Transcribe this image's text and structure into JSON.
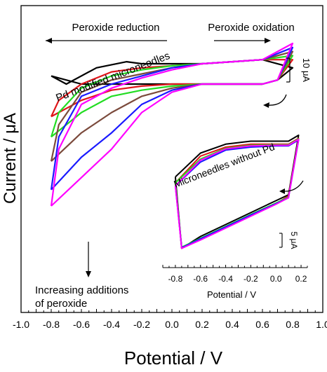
{
  "chart_data": [
    {
      "type": "line",
      "xlabel": "Potential / V",
      "ylabel": "Current / μA",
      "xlim": [
        -1.0,
        1.0
      ],
      "x_ticks": [
        "-1.0",
        "-0.8",
        "-0.6",
        "-0.4",
        "-0.2",
        "0.0",
        "0.2",
        "0.4",
        "0.6",
        "0.8",
        "1.0"
      ],
      "y_scale_bar": "10 μA",
      "grid": false,
      "annotations": {
        "reduction": "Peroxide reduction",
        "oxidation": "Peroxide oxidation",
        "pd_label": "Pd modified microneedles",
        "increasing_line1": "Increasing additions",
        "increasing_line2": "of peroxide"
      },
      "series": [
        {
          "color": "#000000",
          "forward": [
            [
              -0.8,
              -10
            ],
            [
              -0.6,
              -12
            ],
            [
              -0.4,
              -12
            ],
            [
              -0.2,
              -12
            ],
            [
              0.0,
              -12
            ],
            [
              0.2,
              -12
            ],
            [
              0.4,
              -12
            ],
            [
              0.6,
              -12
            ],
            [
              0.7,
              -11
            ],
            [
              0.8,
              -8
            ]
          ],
          "reverse": [
            [
              0.8,
              -8
            ],
            [
              0.6,
              -6
            ],
            [
              0.4,
              -6.5
            ],
            [
              0.2,
              -7
            ],
            [
              0.0,
              -7
            ],
            [
              -0.2,
              -7
            ],
            [
              -0.3,
              -6.5
            ],
            [
              -0.5,
              -8
            ],
            [
              -0.7,
              -12
            ],
            [
              -0.8,
              -10
            ]
          ]
        },
        {
          "color": "#e0161a",
          "forward": [
            [
              -0.8,
              -20
            ],
            [
              -0.6,
              -16
            ],
            [
              -0.4,
              -13.5
            ],
            [
              -0.2,
              -12.5
            ],
            [
              0.0,
              -12
            ],
            [
              0.2,
              -12
            ],
            [
              0.4,
              -12
            ],
            [
              0.6,
              -12
            ],
            [
              0.7,
              -11
            ],
            [
              0.8,
              -6
            ]
          ],
          "reverse": [
            [
              0.8,
              -6
            ],
            [
              0.6,
              -6
            ],
            [
              0.4,
              -6.5
            ],
            [
              0.2,
              -7
            ],
            [
              0.0,
              -7.5
            ],
            [
              -0.2,
              -8
            ],
            [
              -0.4,
              -9
            ],
            [
              -0.6,
              -12
            ],
            [
              -0.75,
              -16
            ],
            [
              -0.8,
              -20
            ]
          ]
        },
        {
          "color": "#22dd22",
          "forward": [
            [
              -0.8,
              -25
            ],
            [
              -0.6,
              -19
            ],
            [
              -0.4,
              -15
            ],
            [
              -0.2,
              -13.5
            ],
            [
              0.0,
              -12.5
            ],
            [
              0.2,
              -12
            ],
            [
              0.4,
              -12
            ],
            [
              0.6,
              -12
            ],
            [
              0.7,
              -11
            ],
            [
              0.8,
              -5
            ]
          ],
          "reverse": [
            [
              0.8,
              -5
            ],
            [
              0.6,
              -6
            ],
            [
              0.4,
              -6.5
            ],
            [
              0.2,
              -7
            ],
            [
              0.0,
              -7.5
            ],
            [
              -0.2,
              -8.5
            ],
            [
              -0.4,
              -10
            ],
            [
              -0.6,
              -13
            ],
            [
              -0.75,
              -19
            ],
            [
              -0.8,
              -25
            ]
          ]
        },
        {
          "color": "#7b4a3c",
          "forward": [
            [
              -0.8,
              -31
            ],
            [
              -0.6,
              -24
            ],
            [
              -0.4,
              -19
            ],
            [
              -0.2,
              -15
            ],
            [
              0.0,
              -13
            ],
            [
              0.2,
              -12
            ],
            [
              0.4,
              -12
            ],
            [
              0.6,
              -12
            ],
            [
              0.7,
              -11
            ],
            [
              0.8,
              -4
            ]
          ],
          "reverse": [
            [
              0.8,
              -4
            ],
            [
              0.6,
              -6
            ],
            [
              0.4,
              -6.5
            ],
            [
              0.2,
              -7
            ],
            [
              0.0,
              -8
            ],
            [
              -0.2,
              -9.5
            ],
            [
              -0.4,
              -11
            ],
            [
              -0.6,
              -14
            ],
            [
              -0.75,
              -22
            ],
            [
              -0.8,
              -31
            ]
          ]
        },
        {
          "color": "#1a1aff",
          "forward": [
            [
              -0.8,
              -38
            ],
            [
              -0.6,
              -30
            ],
            [
              -0.4,
              -24
            ],
            [
              -0.2,
              -17
            ],
            [
              0.0,
              -13.5
            ],
            [
              0.2,
              -12
            ],
            [
              0.4,
              -12
            ],
            [
              0.6,
              -12
            ],
            [
              0.7,
              -11
            ],
            [
              0.8,
              -3
            ]
          ],
          "reverse": [
            [
              0.8,
              -3
            ],
            [
              0.6,
              -6
            ],
            [
              0.4,
              -6.5
            ],
            [
              0.2,
              -7
            ],
            [
              0.0,
              -8
            ],
            [
              -0.2,
              -10
            ],
            [
              -0.4,
              -12
            ],
            [
              -0.6,
              -15
            ],
            [
              -0.75,
              -25
            ],
            [
              -0.8,
              -38
            ]
          ]
        },
        {
          "color": "#ff00ff",
          "forward": [
            [
              -0.8,
              -42
            ],
            [
              -0.6,
              -35
            ],
            [
              -0.4,
              -28
            ],
            [
              -0.2,
              -19
            ],
            [
              0.0,
              -14
            ],
            [
              0.2,
              -12
            ],
            [
              0.4,
              -12
            ],
            [
              0.6,
              -12
            ],
            [
              0.7,
              -11
            ],
            [
              0.8,
              -2
            ]
          ],
          "reverse": [
            [
              0.8,
              -2
            ],
            [
              0.6,
              -6
            ],
            [
              0.4,
              -6.5
            ],
            [
              0.2,
              -7
            ],
            [
              0.0,
              -8.5
            ],
            [
              -0.2,
              -10.5
            ],
            [
              -0.4,
              -13
            ],
            [
              -0.6,
              -17
            ],
            [
              -0.75,
              -28
            ],
            [
              -0.8,
              -42
            ]
          ]
        }
      ]
    },
    {
      "type": "line",
      "title": "Microneedles without Pd",
      "xlabel": "Potential / V",
      "xlim": [
        -0.9,
        0.25
      ],
      "x_ticks": [
        "-0.8",
        "-0.6",
        "-0.4",
        "-0.2",
        "0.0",
        "0.2"
      ],
      "y_scale_bar": "5 μA",
      "grid": false,
      "series": [
        {
          "color": "#000000",
          "forward": [
            [
              -0.8,
              5
            ],
            [
              -0.6,
              9
            ],
            [
              -0.4,
              10.5
            ],
            [
              -0.2,
              11
            ],
            [
              0.0,
              11
            ],
            [
              0.1,
              11
            ],
            [
              0.18,
              12
            ]
          ],
          "reverse": [
            [
              0.18,
              12
            ],
            [
              0.1,
              2
            ],
            [
              0.0,
              1
            ],
            [
              -0.2,
              -1
            ],
            [
              -0.4,
              -3
            ],
            [
              -0.6,
              -5
            ],
            [
              -0.75,
              -7
            ],
            [
              -0.8,
              5
            ]
          ]
        },
        {
          "color": "#e0161a",
          "forward": [
            [
              -0.8,
              4
            ],
            [
              -0.6,
              8.5
            ],
            [
              -0.4,
              10
            ],
            [
              -0.2,
              10.5
            ],
            [
              0.0,
              10.5
            ],
            [
              0.1,
              10.5
            ],
            [
              0.18,
              11.5
            ]
          ],
          "reverse": [
            [
              0.18,
              11.5
            ],
            [
              0.1,
              1.8
            ],
            [
              0.0,
              0.5
            ],
            [
              -0.2,
              -1.5
            ],
            [
              -0.4,
              -3.5
            ],
            [
              -0.6,
              -5.5
            ],
            [
              -0.75,
              -7
            ],
            [
              -0.8,
              4
            ]
          ]
        },
        {
          "color": "#22dd22",
          "forward": [
            [
              -0.8,
              4
            ],
            [
              -0.6,
              8
            ],
            [
              -0.4,
              9.8
            ],
            [
              -0.2,
              10.3
            ],
            [
              0.0,
              10.4
            ],
            [
              0.1,
              10.4
            ],
            [
              0.18,
              11.4
            ]
          ],
          "reverse": [
            [
              0.18,
              11.4
            ],
            [
              0.1,
              1.6
            ],
            [
              0.0,
              0.6
            ],
            [
              -0.2,
              -1.3
            ],
            [
              -0.4,
              -3.3
            ],
            [
              -0.6,
              -5.3
            ],
            [
              -0.75,
              -6.8
            ],
            [
              -0.8,
              4
            ]
          ]
        },
        {
          "color": "#1a1aff",
          "forward": [
            [
              -0.8,
              3.5
            ],
            [
              -0.6,
              7.5
            ],
            [
              -0.4,
              9.5
            ],
            [
              -0.2,
              10
            ],
            [
              0.0,
              10.2
            ],
            [
              0.1,
              10.2
            ],
            [
              0.18,
              11.2
            ]
          ],
          "reverse": [
            [
              0.18,
              11.2
            ],
            [
              0.1,
              1.5
            ],
            [
              0.0,
              0.5
            ],
            [
              -0.2,
              -1.4
            ],
            [
              -0.4,
              -3.4
            ],
            [
              -0.6,
              -5.4
            ],
            [
              -0.75,
              -6.9
            ],
            [
              -0.8,
              3.5
            ]
          ]
        },
        {
          "color": "#ff00ff",
          "forward": [
            [
              -0.8,
              3.5
            ],
            [
              -0.6,
              7.8
            ],
            [
              -0.4,
              9.7
            ],
            [
              -0.2,
              10.2
            ],
            [
              0.0,
              10.3
            ],
            [
              0.1,
              10.3
            ],
            [
              0.18,
              11.3
            ]
          ],
          "reverse": [
            [
              0.18,
              11.3
            ],
            [
              0.1,
              1.5
            ],
            [
              0.0,
              0.4
            ],
            [
              -0.2,
              -1.6
            ],
            [
              -0.4,
              -3.6
            ],
            [
              -0.6,
              -5.6
            ],
            [
              -0.75,
              -7
            ],
            [
              -0.8,
              3.5
            ]
          ]
        }
      ]
    }
  ]
}
